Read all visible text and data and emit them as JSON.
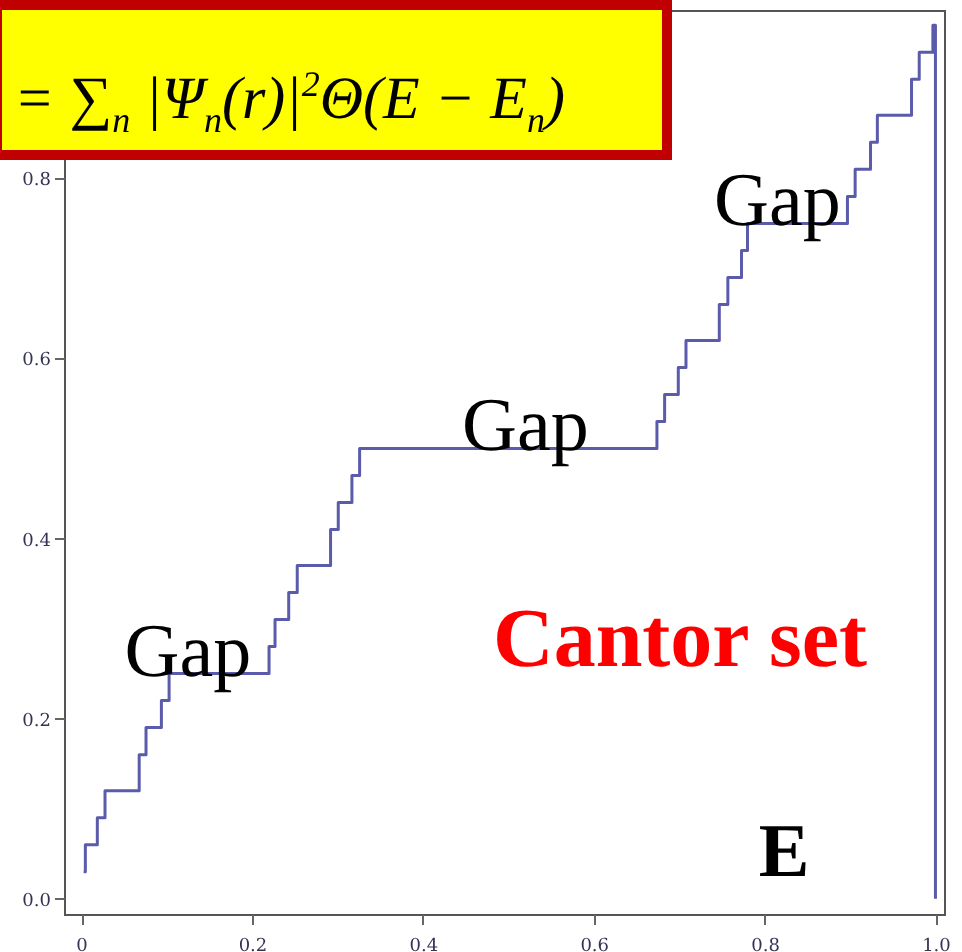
{
  "chart_data": {
    "type": "step",
    "color": "#5b5bab",
    "x": [
      0.003,
      0.005,
      0.019,
      0.028,
      0.068,
      0.076,
      0.094,
      0.103,
      0.22,
      0.227,
      0.243,
      0.253,
      0.292,
      0.301,
      0.317,
      0.326,
      0.674,
      0.683,
      0.699,
      0.708,
      0.747,
      0.757,
      0.773,
      0.78,
      0.897,
      0.906,
      0.924,
      0.932,
      0.972,
      0.981,
      0.997,
      1.0
    ],
    "values": [
      0.03,
      0.06,
      0.09,
      0.12,
      0.16,
      0.19,
      0.22,
      0.25,
      0.28,
      0.31,
      0.34,
      0.37,
      0.41,
      0.44,
      0.47,
      0.5,
      0.53,
      0.56,
      0.59,
      0.62,
      0.66,
      0.69,
      0.72,
      0.75,
      0.78,
      0.81,
      0.84,
      0.87,
      0.91,
      0.94,
      0.97,
      0
    ],
    "xlim": [
      -0.02,
      1.01
    ],
    "ylim": [
      -0.017,
      0.987
    ],
    "xticks": [
      0,
      {
        "value": 0.2,
        "label": "0.2"
      },
      {
        "value": 0.4,
        "label": "0.4"
      },
      {
        "value": 0.6,
        "label": "0.6"
      },
      {
        "value": 0.8,
        "label": "0.8"
      },
      {
        "value": 1,
        "label": "1.0"
      }
    ],
    "yticks": [
      {
        "value": 0,
        "label": "0.0"
      },
      {
        "value": 0.2,
        "label": "0.2"
      },
      {
        "value": 0.4,
        "label": "0.4"
      },
      {
        "value": 0.6,
        "label": "0.6"
      },
      {
        "value": 0.8,
        "label": "0.8"
      }
    ],
    "annotations": [
      "= ∑$_{n}$ |Ψ$_{n}$(r)|$^{2}$Θ(E − E$_{n}$)",
      {
        "text": "Gap",
        "x": 0.125,
        "y": 0.25
      },
      {
        "text": "Gap",
        "x": 0.52,
        "y": 0.5
      },
      {
        "text": "Gap",
        "x": 0.815,
        "y": 0.75
      },
      "Cantor set",
      "E"
    ]
  }
}
